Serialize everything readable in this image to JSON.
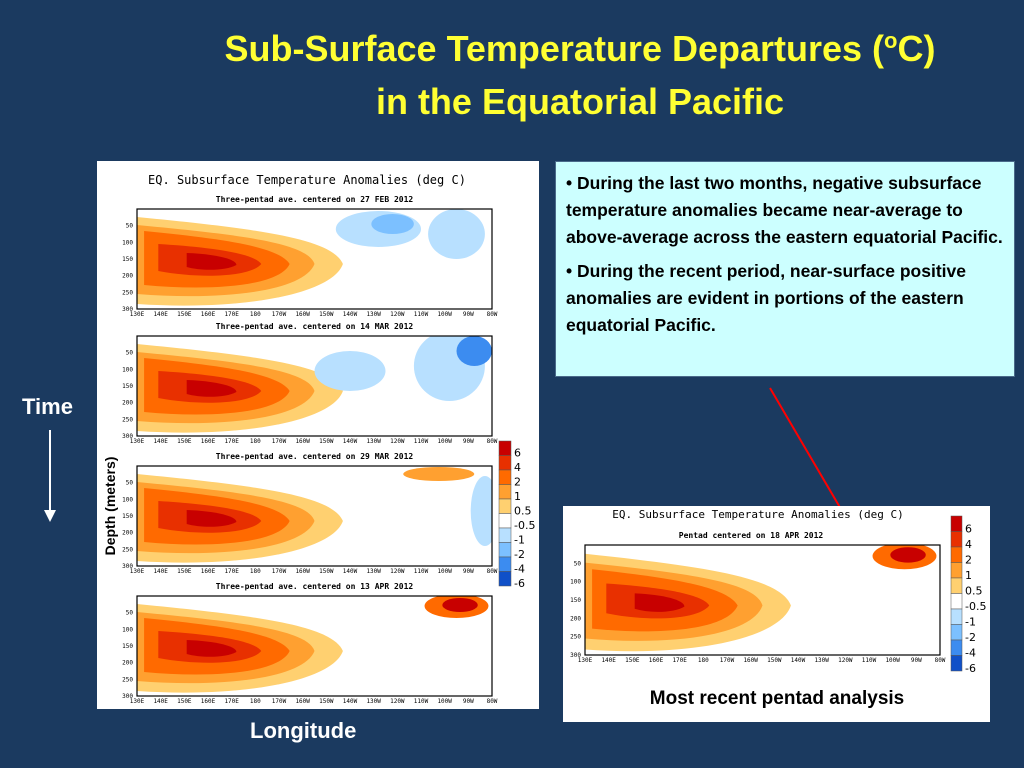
{
  "slide": {
    "title_main": "Sub-Surface Temperature Departures (",
    "title_sup": "o",
    "title_end": "C)",
    "title_line2": "in  the Equatorial Pacific",
    "bullets": [
      "• During the last two months, negative subsurface temperature anomalies became near-average to above-average across the eastern equatorial Pacific.",
      "• During the recent period, near-surface positive anomalies are evident in portions of the eastern equatorial Pacific."
    ],
    "time_label": "Time",
    "longitude_label": "Longitude",
    "depth_label": "Depth (meters)",
    "recent_caption": "Most recent pentad analysis",
    "arrow_color": "#ff0000"
  },
  "chart_data": [
    {
      "type": "heatmap",
      "title": "EQ. Subsurface Temperature Anomalies (deg C)",
      "ylabel": "Depth (meters)",
      "x_ticks": [
        "130E",
        "140E",
        "150E",
        "160E",
        "170E",
        "180",
        "170W",
        "160W",
        "150W",
        "140W",
        "130W",
        "120W",
        "110W",
        "100W",
        "90W",
        "80W"
      ],
      "y_ticks": [
        "50",
        "100",
        "150",
        "200",
        "250",
        "300"
      ],
      "ylim": [
        300,
        0
      ],
      "legend_levels": [
        "6",
        "4",
        "2",
        "1",
        "0.5",
        "-0.5",
        "-1",
        "-2",
        "-4",
        "-6"
      ],
      "legend_colors": [
        "#c80000",
        "#e83000",
        "#ff6a00",
        "#ffa030",
        "#ffd070",
        "#ffffff",
        "#b8e0ff",
        "#7cc0ff",
        "#3c8cf0",
        "#1050c8"
      ],
      "panels": [
        {
          "subtitle": "Three-pentad ave. centered on 27 FEB 2012"
        },
        {
          "subtitle": "Three-pentad ave. centered on 14 MAR 2012"
        },
        {
          "subtitle": "Three-pentad ave. centered on 29 MAR 2012"
        },
        {
          "subtitle": "Three-pentad ave. centered on 13 APR 2012"
        }
      ]
    },
    {
      "type": "heatmap",
      "title": "EQ. Subsurface Temperature Anomalies (deg C)",
      "subtitle": "Pentad centered on 18 APR 2012",
      "x_ticks": [
        "130E",
        "140E",
        "150E",
        "160E",
        "170E",
        "180",
        "170W",
        "160W",
        "150W",
        "140W",
        "130W",
        "120W",
        "110W",
        "100W",
        "90W",
        "80W"
      ],
      "y_ticks": [
        "50",
        "100",
        "150",
        "200",
        "250",
        "300"
      ],
      "ylim": [
        300,
        0
      ],
      "legend_levels": [
        "6",
        "4",
        "2",
        "1",
        "0.5",
        "-0.5",
        "-1",
        "-2",
        "-4",
        "-6"
      ]
    }
  ]
}
